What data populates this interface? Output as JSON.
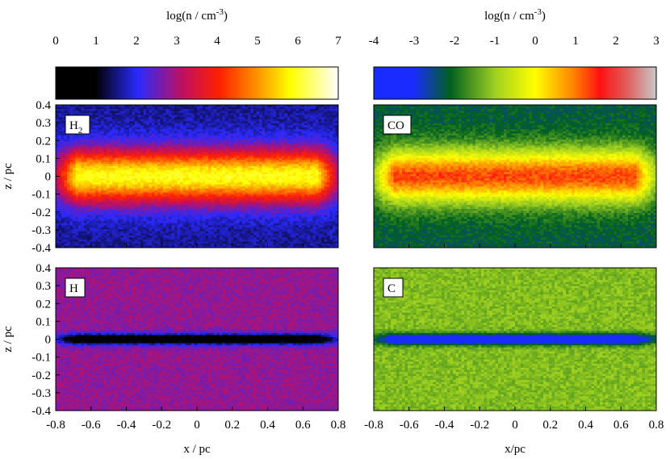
{
  "chart_data": {
    "type": "heatmap",
    "colorbars": [
      {
        "id": "left",
        "title_prefix": "log(n / cm",
        "title_sup": "-3",
        "title_suffix": ")",
        "ticks": [
          "0",
          "1",
          "2",
          "3",
          "4",
          "5",
          "6",
          "7"
        ],
        "range": [
          0,
          7
        ],
        "colors": [
          {
            "pos": 0.0,
            "color": "#000000"
          },
          {
            "pos": 0.14,
            "color": "#000000"
          },
          {
            "pos": 0.29,
            "color": "#2a2aff"
          },
          {
            "pos": 0.45,
            "color": "#c01060"
          },
          {
            "pos": 0.58,
            "color": "#ff2000"
          },
          {
            "pos": 0.71,
            "color": "#ff9000"
          },
          {
            "pos": 0.83,
            "color": "#ffff00"
          },
          {
            "pos": 1.0,
            "color": "#ffffff"
          }
        ]
      },
      {
        "id": "right",
        "title_prefix": "log(n / cm",
        "title_sup": "-3",
        "title_suffix": ")",
        "ticks": [
          "-4",
          "-3",
          "-2",
          "-1",
          "0",
          "1",
          "2",
          "3"
        ],
        "range": [
          -4,
          3
        ],
        "colors": [
          {
            "pos": 0.0,
            "color": "#1a2bff"
          },
          {
            "pos": 0.14,
            "color": "#1a2bff"
          },
          {
            "pos": 0.27,
            "color": "#006020"
          },
          {
            "pos": 0.43,
            "color": "#a0d020"
          },
          {
            "pos": 0.57,
            "color": "#ffff00"
          },
          {
            "pos": 0.71,
            "color": "#ff8000"
          },
          {
            "pos": 0.8,
            "color": "#ff1010"
          },
          {
            "pos": 0.9,
            "color": "#e06060"
          },
          {
            "pos": 1.0,
            "color": "#c8c8c8"
          }
        ]
      }
    ],
    "panels": [
      {
        "id": "h2",
        "label": "H",
        "label_sub": "2",
        "species": "H2",
        "colorbar": "left",
        "x_range": [
          -0.8,
          0.8
        ],
        "z_range": [
          -0.4,
          0.4
        ],
        "background_logn": 1.6,
        "midplane_logn": 5.9,
        "layer_halfwidth_pc": 0.15
      },
      {
        "id": "co",
        "label": "CO",
        "label_sub": "",
        "species": "CO",
        "colorbar": "right",
        "x_range": [
          -0.8,
          0.8
        ],
        "z_range": [
          -0.4,
          0.4
        ],
        "background_logn": -2.2,
        "midplane_logn": 1.3,
        "layer_halfwidth_pc": 0.15
      },
      {
        "id": "h",
        "label": "H",
        "label_sub": "",
        "species": "H",
        "colorbar": "left",
        "x_range": [
          -0.8,
          0.8
        ],
        "z_range": [
          -0.4,
          0.4
        ],
        "background_logn": 2.8,
        "midplane_logn": 0.2,
        "layer_halfwidth_pc": 0.03
      },
      {
        "id": "c",
        "label": "C",
        "label_sub": "",
        "species": "C",
        "colorbar": "right",
        "x_range": [
          -0.8,
          0.8
        ],
        "z_range": [
          -0.4,
          0.4
        ],
        "background_logn": -1.2,
        "midplane_logn": -3.8,
        "layer_halfwidth_pc": 0.03
      }
    ],
    "x_ticks": [
      "-0.8",
      "-0.6",
      "-0.4",
      "-0.2",
      "0",
      "0.2",
      "0.4",
      "0.6",
      "0.8"
    ],
    "z_ticks": [
      "0.4",
      "0.3",
      "0.2",
      "0.1",
      "0",
      "-0.1",
      "-0.2",
      "-0.3",
      "-0.4"
    ],
    "xlabel_left": "x / pc",
    "xlabel_right": "x/pc",
    "ylabel": "z / pc"
  }
}
